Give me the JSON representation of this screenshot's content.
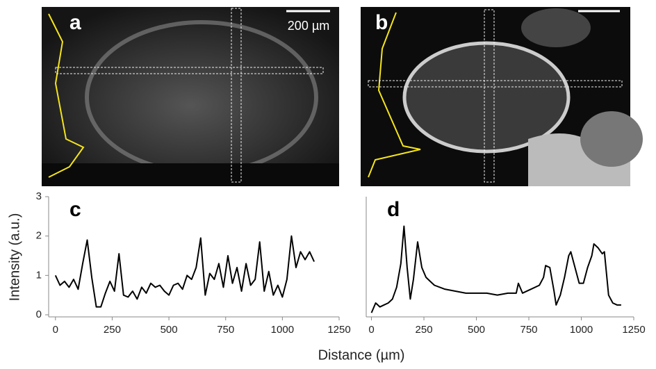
{
  "images": [
    {
      "label": "a",
      "scale_bar": "200 µm"
    },
    {
      "label": "b"
    }
  ],
  "figure": {
    "ylabel": "Intensity (a.u.)",
    "xlabel": "Distance (µm)"
  },
  "chart_data": [
    {
      "type": "line",
      "label": "c",
      "color": "#000000",
      "x": [
        0,
        20,
        40,
        60,
        80,
        100,
        120,
        140,
        160,
        180,
        200,
        220,
        240,
        260,
        280,
        300,
        320,
        340,
        360,
        380,
        400,
        420,
        440,
        460,
        480,
        500,
        520,
        540,
        560,
        580,
        600,
        620,
        640,
        660,
        680,
        700,
        720,
        740,
        760,
        780,
        800,
        820,
        840,
        860,
        880,
        900,
        920,
        940,
        960,
        980,
        1000,
        1020,
        1040,
        1060,
        1080,
        1100,
        1120,
        1140
      ],
      "values": [
        1.0,
        0.75,
        0.85,
        0.7,
        0.9,
        0.65,
        1.3,
        1.9,
        0.95,
        0.2,
        0.2,
        0.55,
        0.85,
        0.6,
        1.55,
        0.5,
        0.45,
        0.6,
        0.4,
        0.7,
        0.55,
        0.8,
        0.7,
        0.75,
        0.6,
        0.5,
        0.75,
        0.8,
        0.65,
        1.0,
        0.9,
        1.2,
        1.95,
        0.5,
        1.05,
        0.9,
        1.3,
        0.7,
        1.5,
        0.8,
        1.2,
        0.6,
        1.3,
        0.75,
        0.9,
        1.85,
        0.6,
        1.1,
        0.5,
        0.75,
        0.45,
        0.9,
        2.0,
        1.2,
        1.6,
        1.4,
        1.6,
        1.35
      ],
      "xlim": [
        -30,
        1250
      ],
      "xticks": [
        0,
        250,
        500,
        750,
        1000,
        1250
      ],
      "ylim": [
        0,
        3
      ],
      "yticks": [
        0,
        1,
        2,
        3
      ]
    },
    {
      "type": "line",
      "label": "d",
      "color": "#000000",
      "x": [
        0,
        20,
        40,
        60,
        80,
        100,
        120,
        140,
        155,
        170,
        185,
        200,
        220,
        240,
        260,
        280,
        300,
        350,
        400,
        450,
        500,
        550,
        600,
        650,
        690,
        700,
        720,
        760,
        800,
        820,
        830,
        850,
        870,
        880,
        900,
        920,
        940,
        950,
        970,
        990,
        1010,
        1030,
        1050,
        1060,
        1080,
        1100,
        1110,
        1130,
        1150,
        1170,
        1190
      ],
      "values": [
        0.05,
        0.3,
        0.2,
        0.25,
        0.3,
        0.4,
        0.7,
        1.3,
        2.25,
        1.2,
        0.4,
        0.9,
        1.85,
        1.2,
        0.95,
        0.85,
        0.75,
        0.65,
        0.6,
        0.55,
        0.55,
        0.55,
        0.5,
        0.55,
        0.55,
        0.8,
        0.55,
        0.65,
        0.75,
        0.95,
        1.25,
        1.2,
        0.6,
        0.25,
        0.5,
        0.95,
        1.5,
        1.6,
        1.2,
        0.8,
        0.8,
        1.2,
        1.5,
        1.8,
        1.7,
        1.55,
        1.6,
        0.5,
        0.3,
        0.25,
        0.25
      ],
      "xlim": [
        -25,
        1250
      ],
      "xticks": [
        0,
        250,
        500,
        750,
        1000,
        1250
      ],
      "ylim": [
        0,
        3
      ]
    }
  ]
}
